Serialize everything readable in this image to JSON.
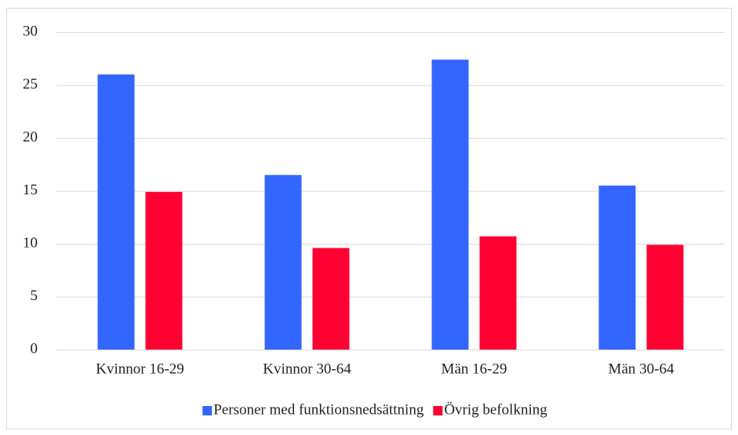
{
  "chart_data": {
    "type": "bar",
    "categories": [
      "Kvinnor 16-29",
      "Kvinnor 30-64",
      "Män 16-29",
      "Män 30-64"
    ],
    "series": [
      {
        "name": "Personer med funktionsnedsättning",
        "color": "#3366ff",
        "values": [
          26,
          16.5,
          27.4,
          15.5
        ]
      },
      {
        "name": "Övrig befolkning",
        "color": "#ff0033",
        "values": [
          14.9,
          9.6,
          10.7,
          9.9
        ]
      }
    ],
    "ylim": [
      0,
      30
    ],
    "yticks": [
      0,
      5,
      10,
      15,
      20,
      25,
      30
    ],
    "grid": true,
    "legend": "bottom"
  }
}
